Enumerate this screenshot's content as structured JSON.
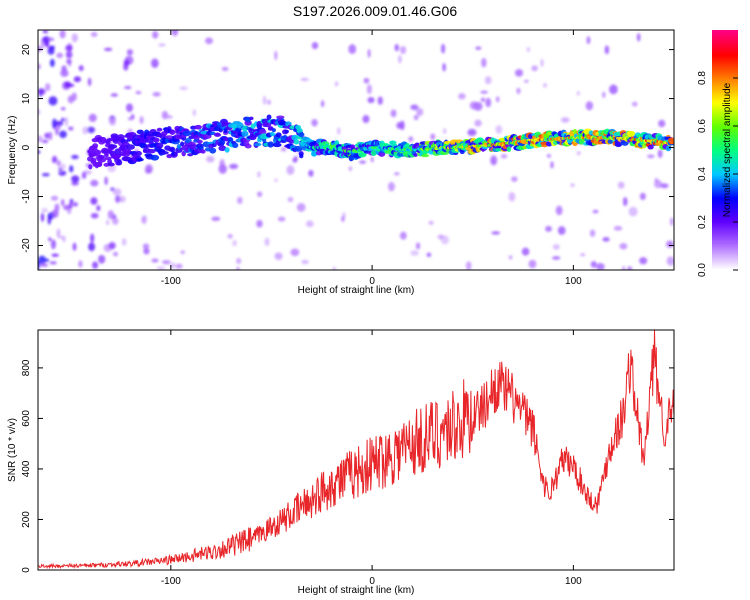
{
  "title": "S197.2026.009.01.46.G06",
  "chart_data": [
    {
      "type": "heatmap",
      "xlabel": "Height of straight line (km)",
      "ylabel": "Frequency (Hz)",
      "xlim": [
        -166,
        150
      ],
      "ylim": [
        -25,
        24
      ],
      "xticks": [
        -100,
        0,
        100
      ],
      "xtick_labels": [
        "-100",
        "0",
        "100"
      ],
      "yticks": [
        -20,
        -10,
        0,
        10,
        20
      ],
      "ytick_labels": [
        "-20",
        "-10",
        "0",
        "10",
        "20"
      ],
      "colorbar": {
        "label": "Normalized spectral amplitude",
        "range": [
          0,
          1
        ],
        "ticks": [
          0.0,
          0.2,
          0.4,
          0.6,
          0.8
        ],
        "tick_labels": [
          "0.0",
          "0.2",
          "0.4",
          "0.6",
          "0.8"
        ],
        "colors": [
          "#ffffff",
          "#b070ff",
          "#6000ff",
          "#0000ff",
          "#00c8ff",
          "#00ff80",
          "#60ff00",
          "#ffff00",
          "#ff8000",
          "#ff0000",
          "#ff0080"
        ]
      },
      "ridge": {
        "x": [
          -135,
          -120,
          -100,
          -80,
          -60,
          -45,
          -30,
          -20,
          -10,
          0,
          20,
          40,
          60,
          80,
          100,
          120,
          148
        ],
        "frequency": [
          -1,
          0,
          1,
          2,
          3,
          3.5,
          0,
          0,
          -1,
          0,
          -0.5,
          0,
          0.5,
          1.5,
          2,
          2,
          1
        ],
        "amplitude": [
          0.2,
          0.3,
          0.35,
          0.4,
          0.45,
          0.45,
          0.5,
          0.6,
          0.6,
          0.55,
          0.6,
          0.75,
          0.85,
          0.9,
          0.85,
          0.85,
          0.9
        ]
      }
    },
    {
      "type": "line",
      "xlabel": "Height of straight line (km)",
      "ylabel": "SNR (10 * v/v)",
      "xlim": [
        -166,
        150
      ],
      "ylim": [
        0,
        950
      ],
      "xticks": [
        -100,
        0,
        100
      ],
      "xtick_labels": [
        "-100",
        "0",
        "100"
      ],
      "yticks": [
        0,
        200,
        400,
        600,
        800
      ],
      "ytick_labels": [
        "0",
        "200",
        "400",
        "600",
        "800"
      ],
      "color": "#e8262a",
      "envelope": {
        "x": [
          -166,
          -140,
          -120,
          -100,
          -80,
          -60,
          -40,
          -20,
          0,
          20,
          40,
          55,
          62,
          70,
          80,
          85,
          88,
          95,
          100,
          108,
          112,
          118,
          125,
          128,
          132,
          135,
          140,
          145,
          150
        ],
        "y": [
          15,
          18,
          25,
          40,
          70,
          120,
          220,
          340,
          420,
          500,
          570,
          640,
          740,
          680,
          560,
          350,
          300,
          440,
          410,
          280,
          260,
          480,
          620,
          820,
          600,
          420,
          850,
          560,
          640
        ]
      }
    }
  ]
}
